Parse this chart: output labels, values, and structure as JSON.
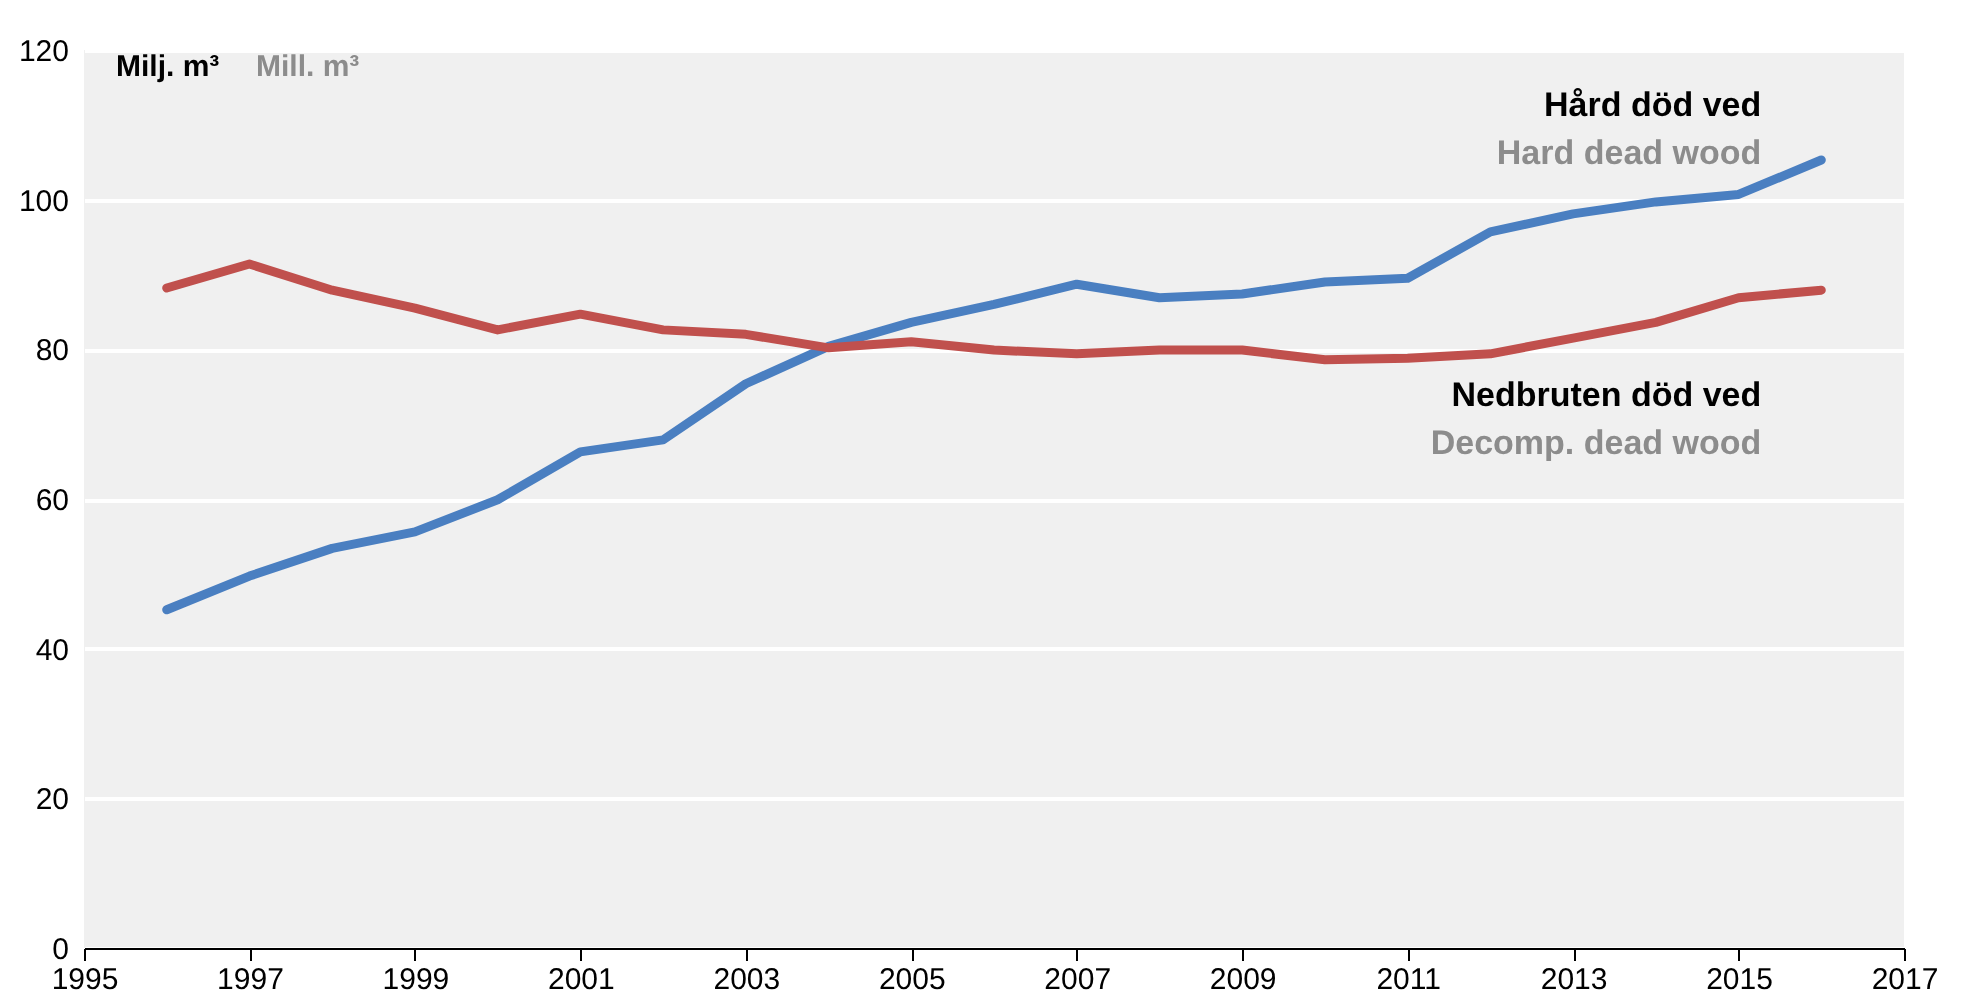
{
  "chart_data": {
    "type": "line",
    "ylabel": "Milj. m³",
    "x": [
      1996,
      1997,
      1998,
      1999,
      2000,
      2001,
      2002,
      2003,
      2004,
      2005,
      2006,
      2007,
      2008,
      2009,
      2010,
      2011,
      2012,
      2013,
      2014,
      2015,
      2016
    ],
    "series": [
      {
        "name": "Hård död ved",
        "color": "#4a7fc1",
        "values": [
          45.2,
          49.7,
          53.4,
          55.6,
          59.9,
          66.3,
          67.9,
          75.4,
          80.4,
          83.6,
          86,
          88.7,
          86.9,
          87.4,
          89,
          89.5,
          95.7,
          98.1,
          99.7,
          100.7,
          105.3
        ]
      },
      {
        "name": "Nedbruten död ved",
        "color": "#c0504d",
        "values": [
          88.2,
          91.4,
          87.9,
          85.5,
          82.6,
          84.7,
          82.6,
          82,
          80.2,
          81,
          79.9,
          79.4,
          79.9,
          79.9,
          78.6,
          78.8,
          79.4,
          81.5,
          83.6,
          86.9,
          87.9
        ]
      }
    ],
    "annotations": [
      "Mill. m³",
      "Hard dead wood",
      "Decomp. dead wood"
    ],
    "xlim": [
      1995,
      2017
    ],
    "xticks": [
      1995,
      1997,
      1999,
      2001,
      2003,
      2005,
      2007,
      2009,
      2011,
      2013,
      2015,
      2017
    ],
    "ylim": [
      0,
      120
    ],
    "yticks": [
      0,
      20,
      40,
      60,
      80,
      100,
      120
    ],
    "grid": "y",
    "marker": "none",
    "line_style": "solid"
  }
}
